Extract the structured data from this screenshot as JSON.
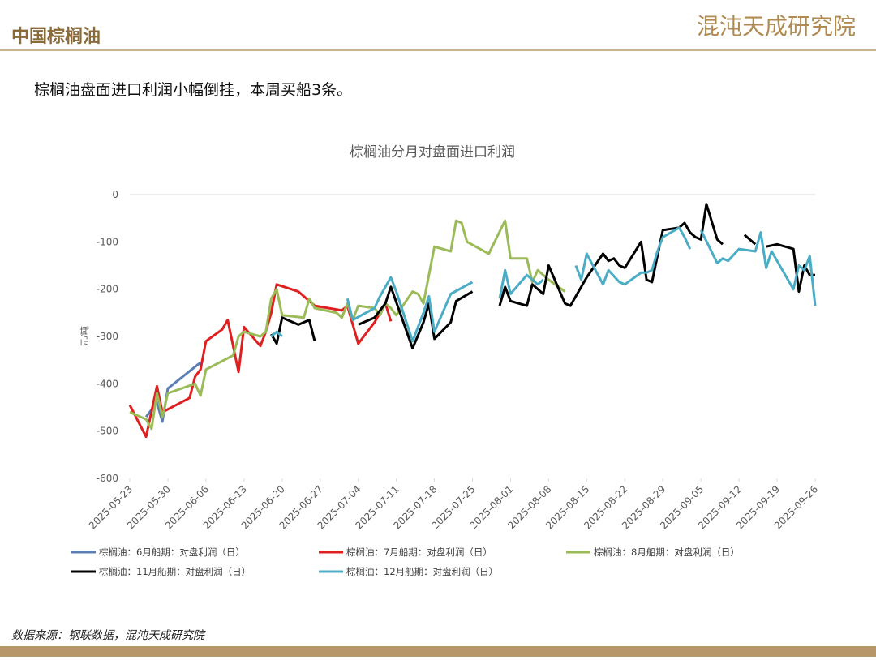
{
  "header": {
    "title": "中国棕榈油",
    "logo": "混沌天成研究院"
  },
  "subtitle": "棕榈油盘面进口利润小幅倒挂，本周买船3条。",
  "source": "数据来源：钢联数据，混沌天成研究院",
  "chart_data": {
    "type": "line",
    "title": "棕榈油分月对盘面进口利润",
    "y_label": "元/吨",
    "ylim": [
      -600,
      0
    ],
    "yticks": [
      0,
      -100,
      -200,
      -300,
      -400,
      -500,
      -600
    ],
    "xlim": [
      "2025-05-23",
      "2025-09-26"
    ],
    "xticks": [
      "2025-05-23",
      "2025-05-30",
      "2025-06-06",
      "2025-06-13",
      "2025-06-20",
      "2025-06-27",
      "2025-07-04",
      "2025-07-11",
      "2025-07-18",
      "2025-07-25",
      "2025-08-01",
      "2025-08-08",
      "2025-08-15",
      "2025-08-22",
      "2025-08-29",
      "2025-09-05",
      "2025-09-12",
      "2025-09-19",
      "2025-09-26"
    ],
    "series": [
      {
        "name": "棕榈油：6月船期：对盘利润（日）",
        "color": "#5b7fb5",
        "x": [
          "2025-05-26",
          "2025-05-28",
          "2025-05-29",
          "2025-05-30",
          "2025-06-05"
        ],
        "values": [
          -470,
          -440,
          -480,
          -410,
          -355
        ]
      },
      {
        "name": "棕榈油：7月船期：对盘利润（日）",
        "color": "#e02020",
        "x": [
          "2025-05-23",
          "2025-05-26",
          "2025-05-28",
          "2025-05-29",
          "2025-06-03",
          "2025-06-04",
          "2025-06-05",
          "2025-06-06",
          "2025-06-09",
          "2025-06-10",
          "2025-06-11",
          "2025-06-12",
          "2025-06-13",
          "2025-06-16",
          "2025-06-17",
          "2025-06-18",
          "2025-06-19",
          "2025-06-23",
          "2025-06-26",
          "2025-07-01",
          "2025-07-02",
          "2025-07-04",
          "2025-07-07",
          "2025-07-09",
          "2025-07-10"
        ],
        "values": [
          -445,
          -512,
          -405,
          -460,
          -430,
          -385,
          -370,
          -310,
          -285,
          -265,
          -320,
          -375,
          -280,
          -320,
          -290,
          -250,
          -190,
          -205,
          -235,
          -245,
          -235,
          -315,
          -270,
          -230,
          -268
        ]
      },
      {
        "name": "棕榈油：8月船期：对盘利润（日）",
        "color": "#9bbb59",
        "x": [
          "2025-05-23",
          "2025-05-26",
          "2025-05-27",
          "2025-05-28",
          "2025-05-29",
          "2025-05-30",
          "2025-06-04",
          "2025-06-05",
          "2025-06-06",
          "2025-06-11",
          "2025-06-12",
          "2025-06-13",
          "2025-06-16",
          "2025-06-17",
          "2025-06-18",
          "2025-06-19",
          "2025-06-20",
          "2025-06-24",
          "2025-06-25",
          "2025-06-26",
          "2025-06-30",
          "2025-07-01",
          "2025-07-02",
          "2025-07-03",
          "2025-07-04",
          "2025-07-07",
          "2025-07-08",
          "2025-07-09",
          "2025-07-10",
          "2025-07-11",
          "2025-07-14",
          "2025-07-15",
          "2025-07-16",
          "2025-07-17",
          "2025-07-18",
          "2025-07-21",
          "2025-07-22",
          "2025-07-23",
          "2025-07-24",
          "2025-07-28",
          "2025-07-31",
          "2025-08-01",
          "2025-08-04",
          "2025-08-05",
          "2025-08-06",
          "2025-08-08",
          "2025-08-11"
        ],
        "values": [
          -460,
          -475,
          -495,
          -420,
          -470,
          -420,
          -400,
          -425,
          -370,
          -340,
          -300,
          -290,
          -300,
          -290,
          -220,
          -200,
          -255,
          -260,
          -220,
          -240,
          -250,
          -260,
          -230,
          -265,
          -235,
          -240,
          -255,
          -230,
          -240,
          -255,
          -205,
          -210,
          -230,
          -170,
          -110,
          -120,
          -55,
          -60,
          -100,
          -125,
          -55,
          -135,
          -135,
          -185,
          -160,
          -180,
          -205
        ]
      },
      {
        "name": "棕榈油：11月船期：对盘利润（日）",
        "color": "#000000",
        "x": [
          "2025-06-18",
          "2025-06-19",
          "2025-06-20",
          "2025-06-23",
          "2025-06-24",
          "2025-06-25",
          "2025-06-26",
          "2025-06-27",
          "2025-07-04",
          "2025-07-07",
          "2025-07-08",
          "2025-07-09",
          "2025-07-10",
          "2025-07-14",
          "2025-07-16",
          "2025-07-17",
          "2025-07-18",
          "2025-07-21",
          "2025-07-22",
          "2025-07-25",
          "2025-07-28",
          "2025-07-30",
          "2025-07-31",
          "2025-08-01",
          "2025-08-04",
          "2025-08-05",
          "2025-08-07",
          "2025-08-08",
          "2025-08-11",
          "2025-08-12",
          "2025-08-14",
          "2025-08-15",
          "2025-08-18",
          "2025-08-19",
          "2025-08-20",
          "2025-08-21",
          "2025-08-22",
          "2025-08-25",
          "2025-08-26",
          "2025-08-27",
          "2025-08-28",
          "2025-08-29",
          "2025-09-01",
          "2025-09-02",
          "2025-09-03",
          "2025-09-04",
          "2025-09-05",
          "2025-09-06",
          "2025-09-08",
          "2025-09-09",
          "2025-09-10",
          "2025-09-13",
          "2025-09-15",
          "2025-09-16",
          "2025-09-17",
          "2025-09-19",
          "2025-09-22",
          "2025-09-23",
          "2025-09-24",
          "2025-09-25",
          "2025-09-26"
        ],
        "values": [
          -295,
          -315,
          -260,
          -275,
          -270,
          -265,
          -310,
          null,
          -275,
          -260,
          -245,
          -230,
          -195,
          -325,
          -270,
          -230,
          -305,
          -270,
          -225,
          -205,
          null,
          -235,
          -195,
          -225,
          -235,
          -190,
          -210,
          -150,
          -230,
          -235,
          -195,
          -175,
          -125,
          -140,
          -135,
          -150,
          -155,
          -100,
          -180,
          -185,
          -130,
          -75,
          -70,
          -60,
          -80,
          -90,
          -95,
          -20,
          -95,
          -105,
          null,
          -85,
          -105,
          null,
          -110,
          -105,
          -115,
          -205,
          -150,
          -170,
          -170
        ]
      },
      {
        "name": "棕榈油：12月船期：对盘利润（日）",
        "color": "#4bacc6",
        "x": [
          "2025-06-18",
          "2025-06-19",
          "2025-06-20",
          "2025-07-01",
          "2025-07-02",
          "2025-07-03",
          "2025-07-07",
          "2025-07-08",
          "2025-07-09",
          "2025-07-10",
          "2025-07-11",
          "2025-07-14",
          "2025-07-16",
          "2025-07-17",
          "2025-07-18",
          "2025-07-21",
          "2025-07-25",
          "2025-07-28",
          "2025-07-30",
          "2025-07-31",
          "2025-08-01",
          "2025-08-04",
          "2025-08-06",
          "2025-08-07",
          "2025-08-12",
          "2025-08-13",
          "2025-08-14",
          "2025-08-15",
          "2025-08-18",
          "2025-08-19",
          "2025-08-21",
          "2025-08-22",
          "2025-08-25",
          "2025-08-26",
          "2025-08-27",
          "2025-08-28",
          "2025-08-29",
          "2025-09-01",
          "2025-09-02",
          "2025-09-03",
          "2025-09-04",
          "2025-09-05",
          "2025-09-08",
          "2025-09-09",
          "2025-09-10",
          "2025-09-12",
          "2025-09-15",
          "2025-09-16",
          "2025-09-17",
          "2025-09-18",
          "2025-09-22",
          "2025-09-23",
          "2025-09-24",
          "2025-09-25",
          "2025-09-26"
        ],
        "values": [
          -300,
          -290,
          -300,
          null,
          -220,
          -265,
          -240,
          -215,
          -195,
          -175,
          -205,
          -310,
          -250,
          -215,
          -290,
          -210,
          -185,
          null,
          -220,
          -160,
          -210,
          -170,
          -190,
          -180,
          null,
          -150,
          -180,
          -125,
          -190,
          -160,
          -185,
          -190,
          -165,
          -165,
          -160,
          -120,
          -90,
          -70,
          -90,
          -115,
          null,
          -75,
          -145,
          -135,
          -140,
          -115,
          -120,
          -80,
          -155,
          -120,
          -200,
          -150,
          -160,
          -130,
          -235
        ]
      }
    ]
  }
}
